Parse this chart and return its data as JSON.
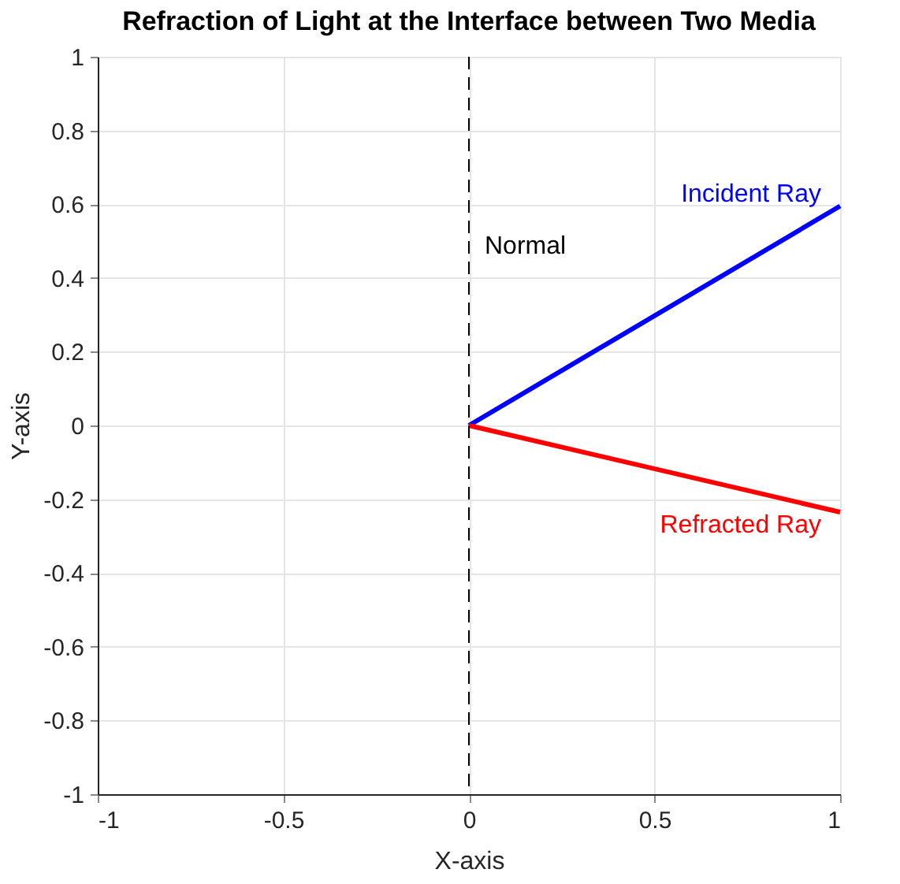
{
  "chart_data": {
    "type": "line",
    "title": "Refraction of Light at the Interface between Two Media",
    "xlabel": "X-axis",
    "ylabel": "Y-axis",
    "x": [
      0,
      1
    ],
    "series": [
      {
        "name": "Incident Ray",
        "color": "#0000ff",
        "values": [
          0,
          0.595
        ]
      },
      {
        "name": "Refracted Ray",
        "color": "#ff0000",
        "values": [
          0,
          -0.235
        ]
      }
    ],
    "xlim": [
      -1,
      1
    ],
    "ylim": [
      -1,
      1
    ],
    "xticks": [
      -1,
      -0.5,
      0,
      0.5,
      1
    ],
    "yticks": [
      -1,
      -0.8,
      -0.6,
      -0.4,
      -0.2,
      0,
      0.2,
      0.4,
      0.6,
      0.8,
      1
    ],
    "ref_lines": [
      {
        "axis": "x",
        "value": 0,
        "label": "Normal",
        "color": "#000000",
        "line_style": "dashed"
      }
    ],
    "grid": true,
    "legend": false,
    "line_style": "solid",
    "marker": "none"
  }
}
